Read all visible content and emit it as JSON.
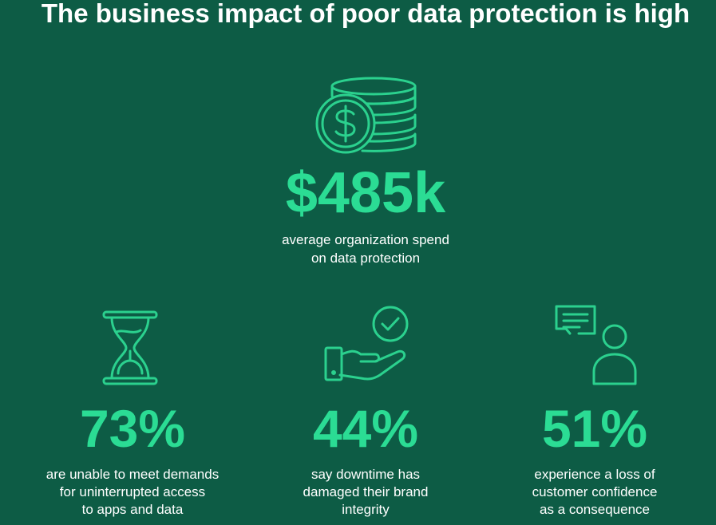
{
  "title": "The business impact of poor data protection is high",
  "headline": {
    "value": "$485k",
    "description": [
      "average organization spend",
      "on data protection"
    ]
  },
  "stats": [
    {
      "value": "73%",
      "description": [
        "are unable to meet demands",
        "for uninterrupted access",
        "to apps and data"
      ]
    },
    {
      "value": "44%",
      "description": [
        "say downtime has",
        "damaged their brand",
        "integrity"
      ]
    },
    {
      "value": "51%",
      "description": [
        "experience a loss of",
        "customer confidence",
        "as a consequence"
      ]
    }
  ]
}
